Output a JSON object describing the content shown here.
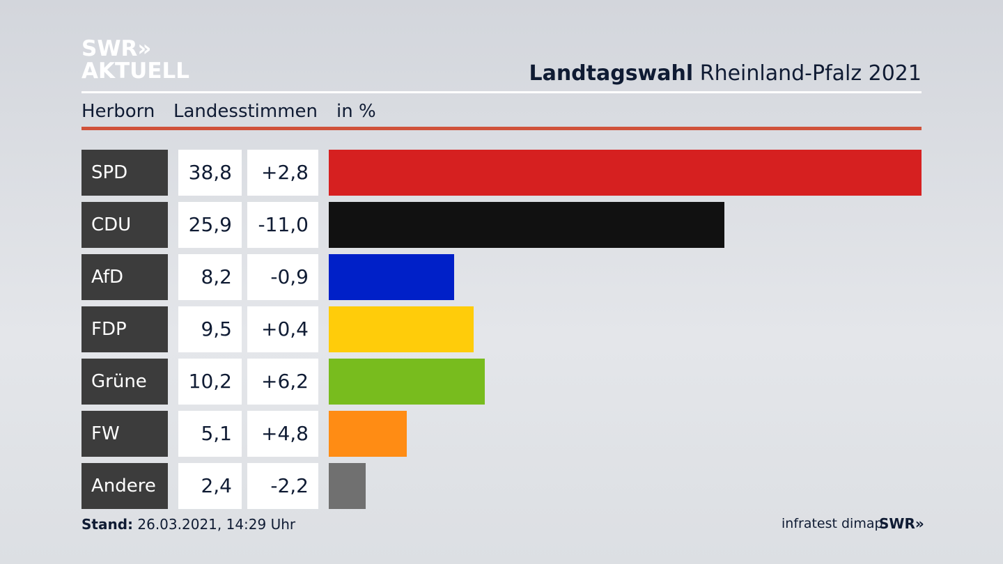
{
  "logo": {
    "line1": "SWR»",
    "line2": "AKTUELL"
  },
  "header": {
    "title_bold": "Landtagswahl",
    "title_rest": "Rheinland-Pfalz 2021"
  },
  "subheader": {
    "place": "Herborn",
    "type": "Landesstimmen",
    "unit": "in %"
  },
  "chart_data": {
    "type": "bar",
    "orientation": "horizontal",
    "title": "Landtagswahl Rheinland-Pfalz 2021 – Herborn Landesstimmen in %",
    "categories": [
      "SPD",
      "CDU",
      "AfD",
      "FDP",
      "Grüne",
      "FW",
      "Andere"
    ],
    "values": [
      38.8,
      25.9,
      8.2,
      9.5,
      10.2,
      5.1,
      2.4
    ],
    "value_labels": [
      "38,8",
      "25,9",
      "8,2",
      "9,5",
      "10,2",
      "5,1",
      "2,4"
    ],
    "diff_labels": [
      "+2,8",
      "-11,0",
      "-0,9",
      "+0,4",
      "+6,2",
      "+4,8",
      "-2,2"
    ],
    "diffs": [
      2.8,
      -11.0,
      -0.9,
      0.4,
      6.2,
      4.8,
      -2.2
    ],
    "colors": [
      "#d62020",
      "#111111",
      "#0020c8",
      "#ffcc0a",
      "#78bc1e",
      "#ff8c14",
      "#707070"
    ],
    "xlim": [
      0,
      38.8
    ]
  },
  "footer": {
    "stand_label": "Stand:",
    "stand_value": "26.03.2021, 14:29 Uhr",
    "source": "infratest dimap",
    "brand": "SWR»"
  }
}
